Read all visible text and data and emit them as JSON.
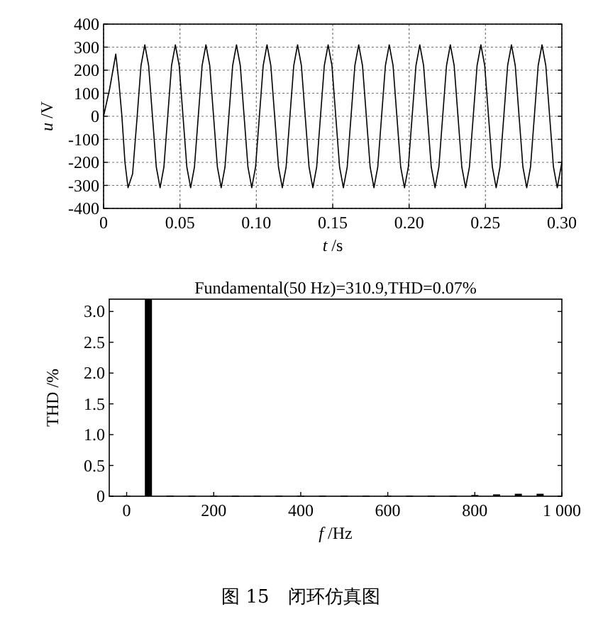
{
  "chart_data": [
    {
      "type": "line",
      "xlabel": "*t* /s",
      "ylabel": "*u* /V",
      "xlim": [
        0,
        0.3
      ],
      "ylim": [
        -400,
        400
      ],
      "xticks": [
        {
          "value": 0,
          "label": "0"
        },
        {
          "value": 0.05,
          "label": "0.05"
        },
        {
          "value": 0.1,
          "label": "0.10"
        },
        {
          "value": 0.15,
          "label": "0.15"
        },
        {
          "value": 0.2,
          "label": "0.20"
        },
        {
          "value": 0.25,
          "label": "0.25"
        },
        {
          "value": 0.3,
          "label": "0.30"
        }
      ],
      "yticks": [
        -400,
        -300,
        -200,
        -100,
        0,
        100,
        200,
        300,
        400
      ],
      "grid": true,
      "series": [
        {
          "color": "#000000",
          "x": [
            0,
            0.004,
            0.008,
            0.01,
            0.012,
            0.014,
            0.016,
            0.019,
            0.022,
            0.0245,
            0.027,
            0.0295,
            0.032,
            0.0345,
            0.037,
            0.0395,
            0.042,
            0.0445,
            0.047,
            0.0495,
            0.052,
            0.0545,
            0.057,
            0.0595,
            0.062,
            0.0645,
            0.067,
            0.0695,
            0.072,
            0.0745,
            0.077,
            0.0795,
            0.082,
            0.0845,
            0.087,
            0.0895,
            0.092,
            0.0945,
            0.097,
            0.0995,
            0.102,
            0.1045,
            0.107,
            0.1095,
            0.112,
            0.1145,
            0.117,
            0.1195,
            0.122,
            0.1245,
            0.127,
            0.1295,
            0.132,
            0.1345,
            0.137,
            0.1395,
            0.142,
            0.1445,
            0.147,
            0.1495,
            0.152,
            0.1545,
            0.157,
            0.1595,
            0.162,
            0.1645,
            0.167,
            0.1695,
            0.172,
            0.1745,
            0.177,
            0.1795,
            0.182,
            0.1845,
            0.187,
            0.1895,
            0.192,
            0.1945,
            0.197,
            0.1995,
            0.202,
            0.2045,
            0.207,
            0.2095,
            0.212,
            0.2145,
            0.217,
            0.2195,
            0.222,
            0.2245,
            0.227,
            0.2295,
            0.232,
            0.2345,
            0.237,
            0.2395,
            0.242,
            0.2445,
            0.247,
            0.2495,
            0.252,
            0.2545,
            0.257,
            0.2595,
            0.262,
            0.2645,
            0.267,
            0.2695,
            0.272,
            0.2745,
            0.277,
            0.2795,
            0.282,
            0.2845,
            0.287,
            0.2895,
            0.292,
            0.2945,
            0.297,
            0.3
          ],
          "values": [
            0,
            120,
            270,
            150,
            0,
            -200,
            -310,
            -250,
            0,
            220,
            310,
            220,
            0,
            -220,
            -310,
            -220,
            0,
            220,
            310,
            220,
            0,
            -220,
            -310,
            -220,
            0,
            220,
            310,
            220,
            0,
            -220,
            -310,
            -220,
            0,
            220,
            310,
            220,
            0,
            -220,
            -310,
            -220,
            0,
            220,
            310,
            220,
            0,
            -220,
            -310,
            -220,
            0,
            220,
            310,
            220,
            0,
            -220,
            -310,
            -220,
            0,
            220,
            310,
            220,
            0,
            -220,
            -310,
            -220,
            0,
            220,
            310,
            220,
            0,
            -220,
            -310,
            -220,
            0,
            220,
            310,
            220,
            0,
            -220,
            -310,
            -220,
            0,
            220,
            310,
            220,
            0,
            -220,
            -310,
            -220,
            0,
            220,
            310,
            220,
            0,
            -220,
            -310,
            -220,
            0,
            220,
            310,
            220,
            0,
            -220,
            -310,
            -220,
            0,
            220,
            310,
            220,
            0,
            -220,
            -310,
            -220,
            0,
            220,
            310,
            220,
            0,
            -220,
            -310,
            -200
          ]
        }
      ]
    },
    {
      "type": "bar",
      "title": "Fundamental(50 Hz)=310.9,THD=0.07%",
      "xlabel": "*f* /Hz",
      "ylabel": "THD /%",
      "xlim": [
        -40,
        1000
      ],
      "ylim": [
        0,
        3.2
      ],
      "xticks": [
        0,
        200,
        400,
        600,
        800,
        {
          "value": 1000,
          "label": "1 000"
        }
      ],
      "yticks": [
        {
          "value": 0,
          "label": "0"
        },
        {
          "value": 0.5,
          "label": "0.5"
        },
        {
          "value": 1,
          "label": "1.0"
        },
        {
          "value": 1.5,
          "label": "1.5"
        },
        {
          "value": 2,
          "label": "2.0"
        },
        {
          "value": 2.5,
          "label": "2.5"
        },
        {
          "value": 3,
          "label": "3.0"
        }
      ],
      "color": "#000000",
      "x": [
        0,
        50,
        100,
        150,
        200,
        250,
        300,
        350,
        400,
        450,
        500,
        550,
        600,
        650,
        700,
        750,
        800,
        850,
        900,
        950
      ],
      "values": [
        0.01,
        3.2,
        0.01,
        0.01,
        0.01,
        0.01,
        0.01,
        0.01,
        0.01,
        0.01,
        0.01,
        0.01,
        0.01,
        0.01,
        0.01,
        0.01,
        0.02,
        0.03,
        0.04,
        0.04
      ],
      "annotations": [
        "图 15　闭环仿真图"
      ]
    }
  ]
}
